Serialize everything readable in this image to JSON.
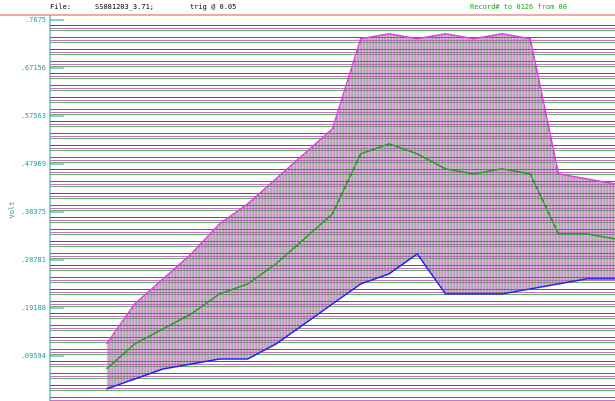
{
  "header": {
    "file_label": "File:",
    "file_name": "SS081203_3.71;",
    "trigger": "trig @ 0.05",
    "record": "Record# to 0126 from 00"
  },
  "chart_data": {
    "type": "line",
    "y_label": "Volt",
    "x": [
      0,
      5,
      10,
      15,
      20,
      25,
      30,
      35,
      40,
      45,
      50,
      55,
      60,
      65,
      70,
      75,
      80,
      85,
      90,
      95,
      100
    ],
    "xlim": [
      0,
      100
    ],
    "ylim": [
      0.018,
      0.7675
    ],
    "yticks": [
      {
        "value": 0.7675,
        "label": ".7675"
      },
      {
        "value": 0.67156,
        "label": ".67156"
      },
      {
        "value": 0.57563,
        "label": ".57563"
      },
      {
        "value": 0.47969,
        "label": ".47969"
      },
      {
        "value": 0.38375,
        "label": ".38375"
      },
      {
        "value": 0.28781,
        "label": ".28781"
      },
      {
        "value": 0.19188,
        "label": ".19188"
      },
      {
        "value": 0.09594,
        "label": ".09594"
      }
    ],
    "series": [
      {
        "color": "#e040e0",
        "values": [
          null,
          null,
          0.12,
          0.2,
          0.25,
          0.3,
          0.36,
          0.4,
          0.45,
          0.5,
          0.55,
          0.73,
          0.74,
          0.73,
          0.74,
          0.73,
          0.74,
          0.73,
          0.46,
          0.45,
          0.44
        ]
      },
      {
        "color": "#20a020",
        "values": [
          null,
          null,
          0.07,
          0.12,
          0.15,
          0.18,
          0.22,
          0.24,
          0.28,
          0.33,
          0.38,
          0.5,
          0.52,
          0.5,
          0.47,
          0.46,
          0.47,
          0.46,
          0.34,
          0.34,
          0.33
        ]
      },
      {
        "color": "#2020ff",
        "values": [
          null,
          null,
          0.03,
          0.05,
          0.07,
          0.08,
          0.09,
          0.09,
          0.12,
          0.16,
          0.2,
          0.24,
          0.26,
          0.3,
          0.22,
          0.22,
          0.22,
          0.23,
          0.24,
          0.25,
          0.25
        ]
      }
    ]
  }
}
